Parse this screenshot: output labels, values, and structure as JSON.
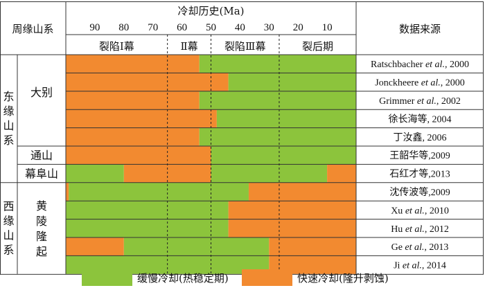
{
  "header": {
    "region_col": "周缘山系",
    "time_title": "冷却历史(Ma)",
    "source_col": "数据来源",
    "ticks": [
      90,
      80,
      70,
      60,
      50,
      40,
      30,
      20,
      10
    ],
    "phases": [
      "裂陷Ⅰ幕",
      "Ⅱ幕",
      "裂陷Ⅲ幕",
      "裂后期"
    ]
  },
  "regions": [
    {
      "label": "东缘山系",
      "subs": [
        {
          "label": "大别",
          "rows": [
            0,
            1,
            2,
            3,
            4
          ]
        },
        {
          "label": "通山",
          "rows": [
            5
          ]
        },
        {
          "label": "幕阜山",
          "rows": [
            6
          ]
        }
      ]
    },
    {
      "label": "西缘山系",
      "subs": [
        {
          "label": "黄陵隆起",
          "rows": [
            7,
            8,
            9,
            10,
            11
          ]
        }
      ]
    }
  ],
  "colors": {
    "slow": "#8CC43C",
    "fast": "#F28A30",
    "line": "#333333"
  },
  "chart_data": {
    "type": "timeline",
    "x_axis": {
      "title": "冷却历史(Ma)",
      "range": [
        100,
        0
      ],
      "ticks": [
        90,
        80,
        70,
        60,
        50,
        40,
        30,
        20,
        10
      ]
    },
    "phase_boundaries_ma": [
      65,
      50,
      26.5
    ],
    "rows": [
      {
        "source": "Ratschbacher et al., 2000",
        "segments": [
          {
            "from": 100,
            "to": 54,
            "type": "fast"
          },
          {
            "from": 54,
            "to": 0,
            "type": "slow"
          }
        ]
      },
      {
        "source": "Jonckheere et al., 2000",
        "segments": [
          {
            "from": 100,
            "to": 44,
            "type": "fast"
          },
          {
            "from": 44,
            "to": 0,
            "type": "slow"
          }
        ]
      },
      {
        "source": "Grimmer et al., 2002",
        "segments": [
          {
            "from": 100,
            "to": 54,
            "type": "fast"
          },
          {
            "from": 54,
            "to": 0,
            "type": "slow"
          }
        ]
      },
      {
        "source": "徐长海等, 2004",
        "segments": [
          {
            "from": 100,
            "to": 48,
            "type": "fast"
          },
          {
            "from": 48,
            "to": 0,
            "type": "slow"
          }
        ]
      },
      {
        "source": "丁汝鑫, 2006",
        "segments": [
          {
            "from": 100,
            "to": 54,
            "type": "fast"
          },
          {
            "from": 54,
            "to": 0,
            "type": "slow"
          }
        ]
      },
      {
        "source": "王韶华等,2009",
        "segments": [
          {
            "from": 100,
            "to": 50,
            "type": "fast"
          },
          {
            "from": 50,
            "to": 0,
            "type": "slow"
          }
        ]
      },
      {
        "source": "石红才等,2013",
        "segments": [
          {
            "from": 100,
            "to": 80,
            "type": "slow"
          },
          {
            "from": 80,
            "to": 50,
            "type": "fast"
          },
          {
            "from": 50,
            "to": 10,
            "type": "slow"
          },
          {
            "from": 10,
            "to": 0,
            "type": "fast"
          }
        ]
      },
      {
        "source": "沈传波等,2009",
        "segments": [
          {
            "from": 100,
            "to": 99,
            "type": "fast"
          },
          {
            "from": 99,
            "to": 37,
            "type": "slow"
          },
          {
            "from": 37,
            "to": 0,
            "type": "fast"
          }
        ]
      },
      {
        "source": "Xu et al., 2010",
        "segments": [
          {
            "from": 100,
            "to": 44,
            "type": "slow"
          },
          {
            "from": 44,
            "to": 0,
            "type": "fast"
          }
        ]
      },
      {
        "source": "Hu et al., 2012",
        "segments": [
          {
            "from": 100,
            "to": 44,
            "type": "slow"
          },
          {
            "from": 44,
            "to": 0,
            "type": "fast"
          }
        ]
      },
      {
        "source": "Ge et al., 2013",
        "segments": [
          {
            "from": 100,
            "to": 80,
            "type": "fast"
          },
          {
            "from": 80,
            "to": 30,
            "type": "slow"
          },
          {
            "from": 30,
            "to": 0,
            "type": "fast"
          }
        ]
      },
      {
        "source": "Ji et al., 2014",
        "segments": [
          {
            "from": 100,
            "to": 30,
            "type": "slow"
          },
          {
            "from": 30,
            "to": 0,
            "type": "fast"
          }
        ]
      }
    ],
    "legend": [
      {
        "type": "slow",
        "label": "缓慢冷却(热稳定期)"
      },
      {
        "type": "fast",
        "label": "快速冷却(隆升剥蚀)"
      }
    ]
  }
}
